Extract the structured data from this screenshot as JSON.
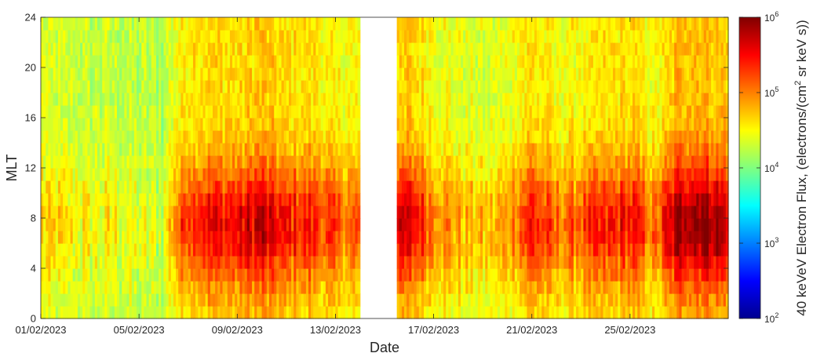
{
  "chart_data": {
    "type": "heatmap",
    "title": "",
    "xlabel": "Date",
    "ylabel": "MLT",
    "x_tick_labels": [
      "01/02/2023",
      "05/02/2023",
      "09/02/2023",
      "13/02/2023",
      "17/02/2023",
      "21/02/2023",
      "25/02/2023"
    ],
    "x_tick_days": [
      0,
      4,
      8,
      12,
      16,
      20,
      24
    ],
    "x_range_days": [
      0,
      28
    ],
    "y_ticks": [
      0,
      4,
      8,
      12,
      16,
      20,
      24
    ],
    "ylim": [
      0,
      24
    ],
    "mlt_bin_hours": 1,
    "time_bin_days": 0.1,
    "data_gap_days": [
      13.0,
      14.5
    ],
    "colorbar": {
      "label_main": "40 keVeV Electron Flux, (electrons/(cm",
      "label_sup": "2",
      "label_tail": " sr keV s))",
      "tick_base": "10",
      "tick_exponents": [
        "2",
        "3",
        "4",
        "5",
        "6"
      ],
      "log_range": [
        2,
        6
      ],
      "colormap": "jet",
      "log_scale": true
    },
    "log10_flux_profile": {
      "description_days": [
        0,
        1,
        2,
        3,
        4,
        5,
        5.2,
        6,
        7,
        8,
        9,
        10,
        11,
        12,
        13,
        14.5,
        15,
        16,
        17,
        18,
        19,
        20,
        21,
        22,
        23,
        24,
        25,
        26,
        27,
        28
      ],
      "peak_log_flux": [
        4.7,
        4.55,
        4.5,
        4.5,
        4.4,
        4.3,
        4.75,
        5.45,
        5.55,
        5.5,
        5.75,
        5.4,
        5.45,
        5.15,
        5.1,
        5.45,
        5.65,
        5.15,
        4.85,
        4.7,
        4.9,
        5.5,
        5.05,
        5.2,
        5.35,
        5.5,
        5.0,
        5.95,
        6.0,
        5.8
      ]
    }
  }
}
